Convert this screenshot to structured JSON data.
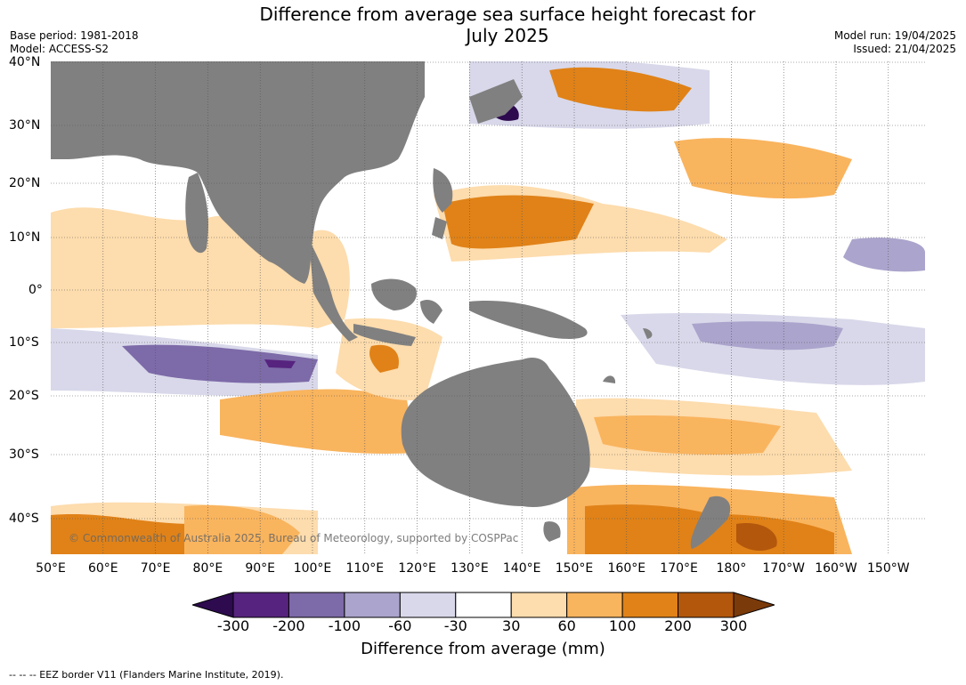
{
  "title_line1": "Difference from average sea surface height forecast for",
  "title_line2": "July 2025",
  "base_period": "Base period: 1981-2018",
  "model": "Model: ACCESS-S2",
  "model_run": "Model run: 19/04/2025",
  "issued": "Issued: 21/04/2025",
  "lat_labels": [
    "40°N",
    "30°N",
    "20°N",
    "10°N",
    "0°",
    "10°S",
    "20°S",
    "30°S",
    "40°S"
  ],
  "lon_labels": [
    "50°E",
    "60°E",
    "70°E",
    "80°E",
    "90°E",
    "100°E",
    "110°E",
    "120°E",
    "130°E",
    "140°E",
    "150°E",
    "160°E",
    "170°E",
    "180°",
    "170°W",
    "160°W",
    "150°W"
  ],
  "copyright": "© Commonwealth of Australia 2025, Bureau of Meteorology, supported by COSPPac",
  "colorbar": {
    "ticks": [
      "-300",
      "-200",
      "-100",
      "-60",
      "-30",
      "30",
      "60",
      "100",
      "200",
      "300"
    ],
    "colors": [
      "#2d0b4e",
      "#56237e",
      "#7d6aa8",
      "#aba4cc",
      "#d8d8ea",
      "#ffffff",
      "#fddcad",
      "#f9b45e",
      "#e08218",
      "#b3570c",
      "#7a3a0a"
    ],
    "label": "Difference from average (mm)"
  },
  "footnote": "--  --  -- EEZ border V11 (Flanders Marine Institute, 2019).",
  "colors": {
    "land": "#808080",
    "ocean": "#ffffff",
    "grid": "#555555"
  }
}
